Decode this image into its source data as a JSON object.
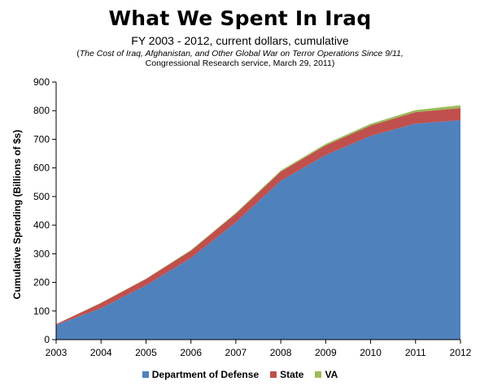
{
  "header": {
    "title": "What We Spent In Iraq",
    "subtitle": "FY 2003 - 2012, current dollars, cumulative",
    "source_line1_italic": "The Cost of Iraq, Afghanistan, and Other Global War on Terror Operations Since 9/11,",
    "source_line2": "Congressional Research service, March 29, 2011)"
  },
  "chart_data": {
    "type": "area",
    "stacked": true,
    "title": "What We Spent In Iraq",
    "subtitle": "FY 2003 - 2012, current dollars, cumulative",
    "xlabel": "",
    "ylabel": "Cumulative Spending (Billions of $s)",
    "x": [
      "2003",
      "2004",
      "2005",
      "2006",
      "2007",
      "2008",
      "2009",
      "2010",
      "2011",
      "2012"
    ],
    "ylim": [
      0,
      900
    ],
    "yticks": [
      0,
      100,
      200,
      300,
      400,
      500,
      600,
      700,
      800,
      900
    ],
    "grid": false,
    "legend_position": "bottom",
    "series": [
      {
        "name": "Department of Defense",
        "color": "#4f81bd",
        "values": [
          51,
          110,
          190,
          285,
          410,
          555,
          645,
          712,
          755,
          767
        ]
      },
      {
        "name": "State",
        "color": "#c0504d",
        "values": [
          3,
          18,
          22,
          26,
          30,
          32,
          34,
          36,
          40,
          42
        ]
      },
      {
        "name": "VA",
        "color": "#9bbb59",
        "values": [
          0,
          1,
          1,
          2,
          3,
          4,
          5,
          6,
          7,
          10
        ]
      }
    ]
  }
}
